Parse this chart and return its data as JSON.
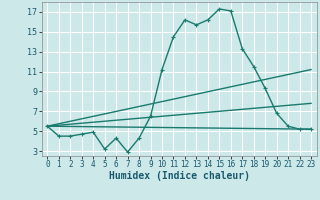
{
  "xlabel": "Humidex (Indice chaleur)",
  "background_color": "#cce8e8",
  "grid_color": "#ffffff",
  "line_color": "#1a7a6e",
  "xlim": [
    -0.5,
    23.5
  ],
  "ylim": [
    2.5,
    18.0
  ],
  "yticks": [
    3,
    5,
    7,
    9,
    11,
    13,
    15,
    17
  ],
  "xticks": [
    0,
    1,
    2,
    3,
    4,
    5,
    6,
    7,
    8,
    9,
    10,
    11,
    12,
    13,
    14,
    15,
    16,
    17,
    18,
    19,
    20,
    21,
    22,
    23
  ],
  "line1_x": [
    0,
    1,
    2,
    3,
    4,
    5,
    6,
    7,
    8,
    9,
    10,
    11,
    12,
    13,
    14,
    15,
    16,
    17,
    18,
    19,
    20,
    21,
    22,
    23
  ],
  "line1_y": [
    5.5,
    4.5,
    4.5,
    4.7,
    4.9,
    3.2,
    4.3,
    2.9,
    4.3,
    6.5,
    11.2,
    14.5,
    16.2,
    15.7,
    16.2,
    17.3,
    17.1,
    13.3,
    11.5,
    9.3,
    6.8,
    5.5,
    5.2,
    5.2
  ],
  "line2_x": [
    0,
    23
  ],
  "line2_y": [
    5.5,
    5.2
  ],
  "line3_x": [
    0,
    23
  ],
  "line3_y": [
    5.5,
    7.8
  ],
  "line4_x": [
    0,
    23
  ],
  "line4_y": [
    5.5,
    11.2
  ],
  "xlabel_fontsize": 7,
  "tick_fontsize": 5.5,
  "linewidth": 1.0
}
